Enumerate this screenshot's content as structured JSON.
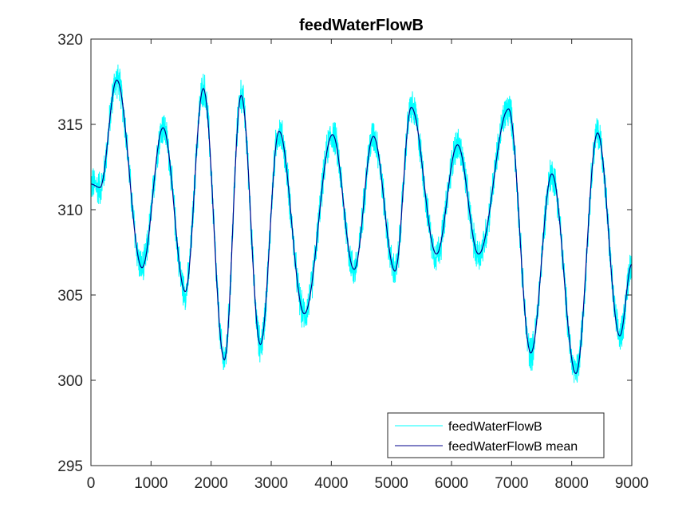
{
  "chart_data": {
    "type": "line",
    "title": "feedWaterFlowB",
    "xlabel": "",
    "ylabel": "",
    "xlim": [
      0,
      9000
    ],
    "ylim": [
      295,
      320
    ],
    "x_ticks": [
      0,
      1000,
      2000,
      3000,
      4000,
      5000,
      6000,
      7000,
      8000,
      9000
    ],
    "x_tick_labels": [
      "0",
      "1000",
      "2000",
      "3000",
      "4000",
      "5000",
      "6000",
      "7000",
      "8000",
      "9000"
    ],
    "y_ticks": [
      295,
      300,
      305,
      310,
      315,
      320
    ],
    "y_tick_labels": [
      "295",
      "300",
      "305",
      "310",
      "315",
      "320"
    ],
    "grid": false,
    "legend_position": "bottom-right",
    "series": [
      {
        "name": "feedWaterFlowB",
        "color": "#00ffff",
        "style": "noisy",
        "noise_amplitude": 1.2,
        "x": [
          0,
          150,
          430,
          850,
          1200,
          1570,
          1870,
          2220,
          2500,
          2820,
          3130,
          3550,
          4020,
          4380,
          4700,
          5060,
          5330,
          5750,
          6100,
          6450,
          6950,
          7320,
          7670,
          8070,
          8430,
          8800,
          9000
        ],
        "y": [
          311.5,
          311.3,
          317.6,
          306.6,
          314.8,
          305.2,
          317.1,
          301.2,
          316.7,
          302.1,
          314.6,
          303.9,
          314.4,
          306.5,
          314.3,
          306.4,
          316.0,
          307.4,
          313.8,
          307.4,
          315.9,
          301.6,
          312.1,
          300.4,
          314.5,
          302.6,
          306.8
        ]
      },
      {
        "name": "feedWaterFlowB mean",
        "color": "#00008b",
        "style": "smooth",
        "x": [
          0,
          150,
          430,
          850,
          1200,
          1570,
          1870,
          2220,
          2500,
          2820,
          3130,
          3550,
          4020,
          4380,
          4700,
          5060,
          5330,
          5750,
          6100,
          6450,
          6950,
          7320,
          7670,
          8070,
          8430,
          8800,
          9000
        ],
        "y": [
          311.5,
          311.3,
          317.6,
          306.6,
          314.8,
          305.2,
          317.1,
          301.2,
          316.7,
          302.1,
          314.6,
          303.9,
          314.4,
          306.5,
          314.3,
          306.4,
          316.0,
          307.4,
          313.8,
          307.4,
          315.9,
          301.6,
          312.1,
          300.4,
          314.5,
          302.6,
          306.8
        ]
      }
    ]
  }
}
